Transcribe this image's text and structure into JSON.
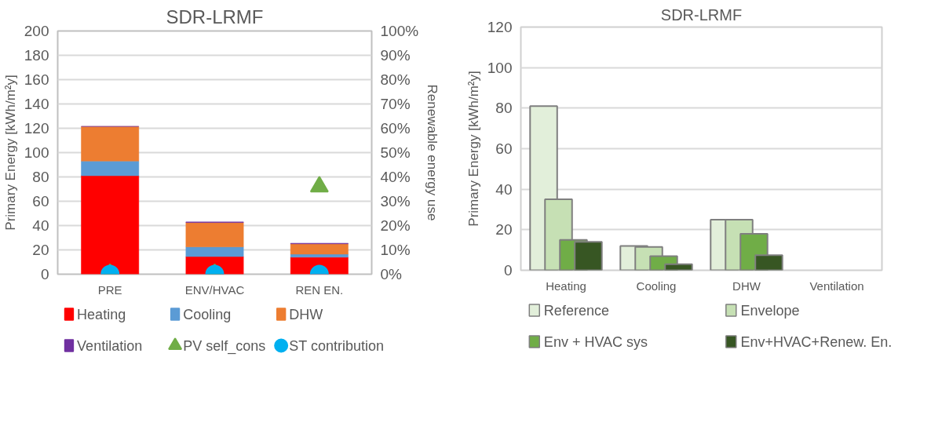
{
  "chart_data": [
    {
      "type": "bar",
      "stacked": true,
      "title": "SDR-LRMF",
      "ylabel": "Primary Energy [kWh/m²y]",
      "y2label": "Renewable energy use",
      "categories": [
        "PRE",
        "ENV/HVAC",
        "REN EN."
      ],
      "series": [
        {
          "name": "Heating",
          "color": "#ff0000",
          "values": [
            81,
            14.5,
            14
          ]
        },
        {
          "name": "Cooling",
          "color": "#5b9bd5",
          "values": [
            12,
            8,
            2.5
          ]
        },
        {
          "name": "DHW",
          "color": "#ed7d31",
          "values": [
            28.5,
            20,
            8.5
          ]
        },
        {
          "name": "Ventilation",
          "color": "#7030a0",
          "values": [
            0,
            0.5,
            0.5
          ]
        },
        {
          "name": "PV self_cons",
          "type": "scatter",
          "axis": "y2",
          "marker": "triangle",
          "color": "#70ad47",
          "values": [
            0,
            0,
            36
          ]
        },
        {
          "name": "ST contribution",
          "type": "scatter",
          "axis": "y2",
          "marker": "circle",
          "color": "#00b0f0",
          "values": [
            0,
            0,
            0
          ]
        }
      ],
      "ylim": [
        0,
        200
      ],
      "yticks": [
        0,
        20,
        40,
        60,
        80,
        100,
        120,
        140,
        160,
        180,
        200
      ],
      "y2lim": [
        0,
        100
      ],
      "y2ticks": [
        {
          "value": 0,
          "label": "0%"
        },
        {
          "value": 10,
          "label": "10%"
        },
        {
          "value": 20,
          "label": "20%"
        },
        {
          "value": 30,
          "label": "30%"
        },
        {
          "value": 40,
          "label": "40%"
        },
        {
          "value": 50,
          "label": "50%"
        },
        {
          "value": 60,
          "label": "60%"
        },
        {
          "value": 70,
          "label": "70%"
        },
        {
          "value": 80,
          "label": "80%"
        },
        {
          "value": 90,
          "label": "90%"
        },
        {
          "value": 100,
          "label": "100%"
        }
      ],
      "grid": "y",
      "legend": "bottom"
    },
    {
      "type": "bar",
      "title": "SDR-LRMF",
      "ylabel": "Primary Energy [kWh/m²y]",
      "categories": [
        "Heating",
        "Cooling",
        "DHW",
        "Ventilation"
      ],
      "series": [
        {
          "name": "Reference",
          "color": "#e2efda",
          "values": [
            81,
            12,
            25,
            null
          ]
        },
        {
          "name": "Envelope",
          "color": "#c6e0b4",
          "values": [
            35,
            11.5,
            25,
            null
          ]
        },
        {
          "name": "Env + HVAC sys",
          "color": "#70ad47",
          "values": [
            15,
            7,
            18,
            null
          ]
        },
        {
          "name": "Env+HVAC+Renew. En.",
          "color": "#375623",
          "values": [
            14,
            3,
            7.5,
            null
          ]
        }
      ],
      "ylim": [
        0,
        120
      ],
      "yticks": [
        0,
        20,
        40,
        60,
        80,
        100,
        120
      ],
      "grid": "y",
      "legend": "bottom"
    }
  ]
}
